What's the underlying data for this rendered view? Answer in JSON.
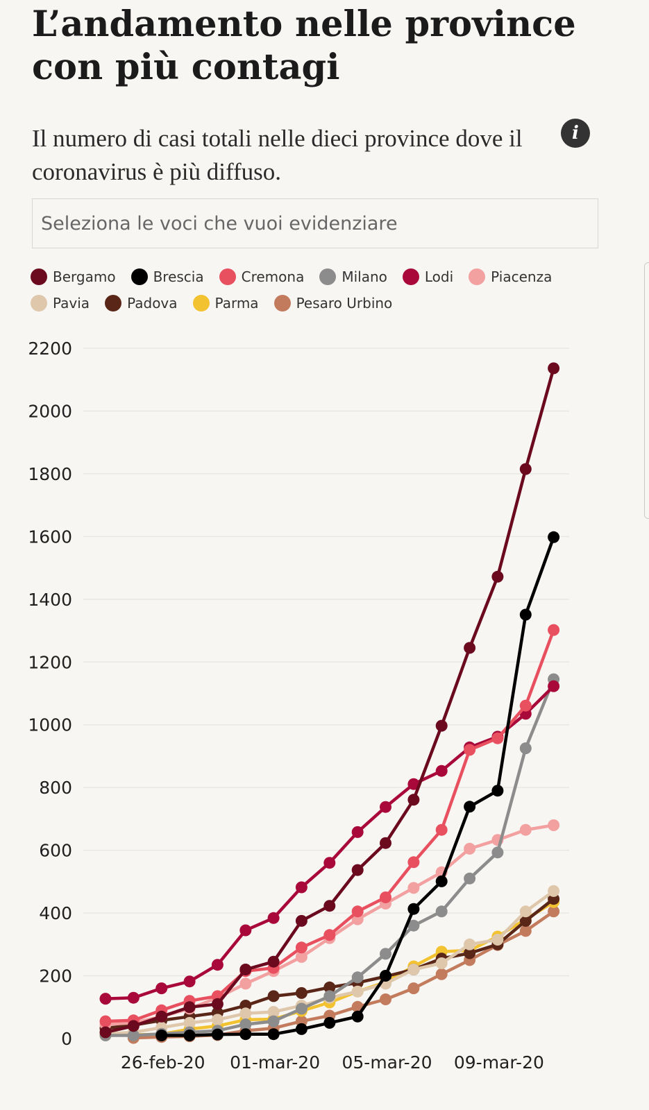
{
  "header": {
    "title": "L’andamento nelle province con più contagi",
    "subtitle": "Il numero di casi totali nelle dieci province dove il coronavirus è più diffuso.",
    "info_icon": "info-icon",
    "info_glyph": "i"
  },
  "search": {
    "placeholder": "Seleziona le voci che vuoi evidenziare"
  },
  "legend": [
    {
      "name": "Bergamo",
      "color": "#6b0a1f"
    },
    {
      "name": "Brescia",
      "color": "#000000"
    },
    {
      "name": "Cremona",
      "color": "#e8505f"
    },
    {
      "name": "Milano",
      "color": "#8c8c8c"
    },
    {
      "name": "Lodi",
      "color": "#a8093a"
    },
    {
      "name": "Piacenza",
      "color": "#f2a0a0"
    },
    {
      "name": "Pavia",
      "color": "#dec7ab"
    },
    {
      "name": "Padova",
      "color": "#5a2618"
    },
    {
      "name": "Parma",
      "color": "#f2c230"
    },
    {
      "name": "Pesaro Urbino",
      "color": "#c27b5c"
    }
  ],
  "chart_data": {
    "type": "line",
    "x": [
      "24-feb-20",
      "25-feb-20",
      "26-feb-20",
      "27-feb-20",
      "28-feb-20",
      "29-feb-20",
      "01-mar-20",
      "02-mar-20",
      "03-mar-20",
      "04-mar-20",
      "05-mar-20",
      "06-mar-20",
      "07-mar-20",
      "08-mar-20",
      "09-mar-20",
      "10-mar-20",
      "11-mar-20"
    ],
    "x_tick_labels": [
      "26-feb-20",
      "01-mar-20",
      "05-mar-20",
      "09-mar-20"
    ],
    "ylim": [
      0,
      2200
    ],
    "y_ticks": [
      0,
      200,
      400,
      600,
      800,
      1000,
      1200,
      1400,
      1600,
      1800,
      2000,
      2200
    ],
    "grid": true,
    "legend_position": "top",
    "series": [
      {
        "name": "Pesaro Urbino",
        "color": "#c27b5c",
        "values": [
          null,
          2,
          5,
          7,
          11,
          25,
          33,
          55,
          73,
          101,
          125,
          160,
          205,
          250,
          298,
          343,
          405
        ]
      },
      {
        "name": "Parma",
        "color": "#f2c230",
        "values": [
          10,
          12,
          14,
          30,
          40,
          60,
          62,
          88,
          115,
          150,
          180,
          230,
          277,
          281,
          325,
          380,
          435
        ]
      },
      {
        "name": "Padova",
        "color": "#5a2618",
        "values": [
          33,
          43,
          58,
          70,
          82,
          105,
          135,
          145,
          163,
          178,
          198,
          220,
          255,
          272,
          300,
          375,
          445
        ]
      },
      {
        "name": "Pavia",
        "color": "#dec7ab",
        "values": [
          15,
          20,
          35,
          50,
          60,
          80,
          85,
          105,
          130,
          150,
          175,
          220,
          240,
          300,
          315,
          405,
          470
        ]
      },
      {
        "name": "Piacenza",
        "color": "#f2a0a0",
        "values": [
          45,
          50,
          70,
          95,
          130,
          175,
          215,
          260,
          320,
          380,
          430,
          480,
          530,
          605,
          633,
          665,
          680
        ]
      },
      {
        "name": "Milano",
        "color": "#8c8c8c",
        "values": [
          10,
          10,
          15,
          20,
          25,
          45,
          55,
          95,
          135,
          195,
          270,
          360,
          405,
          510,
          593,
          925,
          1145
        ]
      },
      {
        "name": "Lodi",
        "color": "#a8093a",
        "values": [
          127,
          130,
          160,
          182,
          235,
          345,
          384,
          482,
          560,
          658,
          738,
          811,
          853,
          928,
          962,
          1035,
          1123
        ]
      },
      {
        "name": "Cremona",
        "color": "#e8505f",
        "values": [
          55,
          58,
          90,
          120,
          135,
          215,
          225,
          290,
          330,
          405,
          450,
          562,
          665,
          920,
          957,
          1061,
          1302
        ]
      },
      {
        "name": "Brescia",
        "color": "#000000",
        "values": [
          null,
          null,
          10,
          10,
          13,
          14,
          14,
          30,
          50,
          70,
          200,
          413,
          501,
          739,
          790,
          1351,
          1598
        ]
      },
      {
        "name": "Bergamo",
        "color": "#6b0a1f",
        "values": [
          20,
          40,
          70,
          100,
          110,
          220,
          245,
          375,
          423,
          537,
          623,
          761,
          997,
          1245,
          1472,
          1815,
          2136
        ]
      }
    ]
  }
}
